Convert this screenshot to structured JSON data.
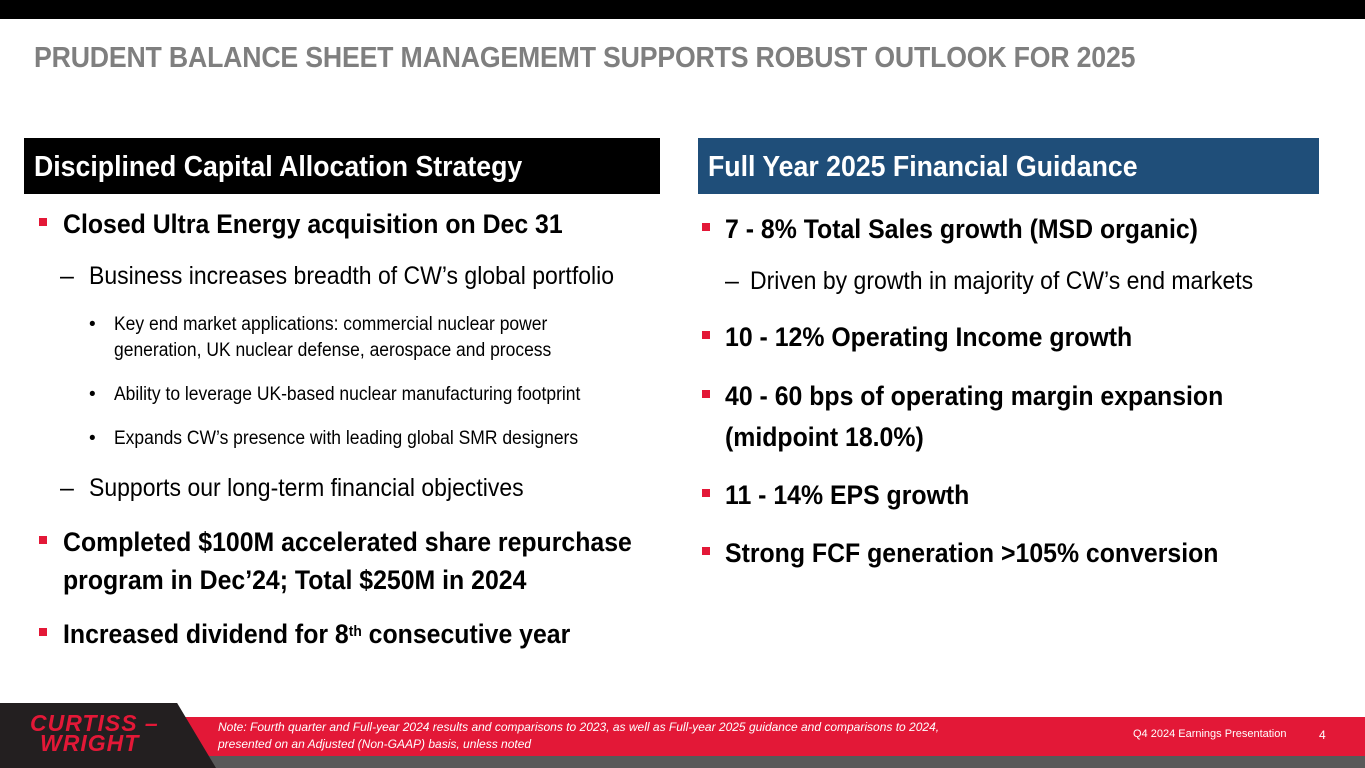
{
  "title": "PRUDENT BALANCE SHEET MANAGEMEMT SUPPORTS ROBUST OUTLOOK FOR 2025",
  "left": {
    "header": "Disciplined Capital Allocation Strategy",
    "items": [
      "Closed Ultra Energy acquisition on Dec 31",
      "Business increases breadth of CW’s global portfolio",
      "Key end market applications: commercial nuclear power",
      "generation, UK nuclear defense, aerospace and process",
      "Ability to leverage UK-based nuclear manufacturing footprint",
      "Expands CW’s presence with leading global SMR designers",
      "Supports our long-term financial objectives",
      "Completed $100M accelerated share repurchase",
      "program in Dec’24; Total $250M in 2024",
      "Increased dividend for 8",
      "th",
      " consecutive year"
    ]
  },
  "right": {
    "header": "Full Year 2025 Financial Guidance",
    "items": [
      "7 - 8% Total Sales growth (MSD organic)",
      "Driven by growth in majority of CW’s end markets",
      "10 - 12% Operating Income growth",
      "40 - 60 bps of operating margin expansion",
      "(midpoint 18.0%)",
      "11 - 14% EPS growth",
      "Strong FCF generation >105% conversion"
    ]
  },
  "footer": {
    "logo_line1": "CURTISS –",
    "logo_line2": "WRIGHT",
    "note_line1": "Note: Fourth quarter and Full-year 2024 results and comparisons to 2023, as well as Full-year 2025 guidance and comparisons to 2024,",
    "note_line2": "presented on an Adjusted (Non-GAAP) basis, unless noted",
    "presentation": "Q4 2024 Earnings Presentation",
    "page": "4"
  },
  "colors": {
    "accent_red": "#e31837",
    "navy": "#1f4e79",
    "title_grey": "#7f7f7f"
  }
}
